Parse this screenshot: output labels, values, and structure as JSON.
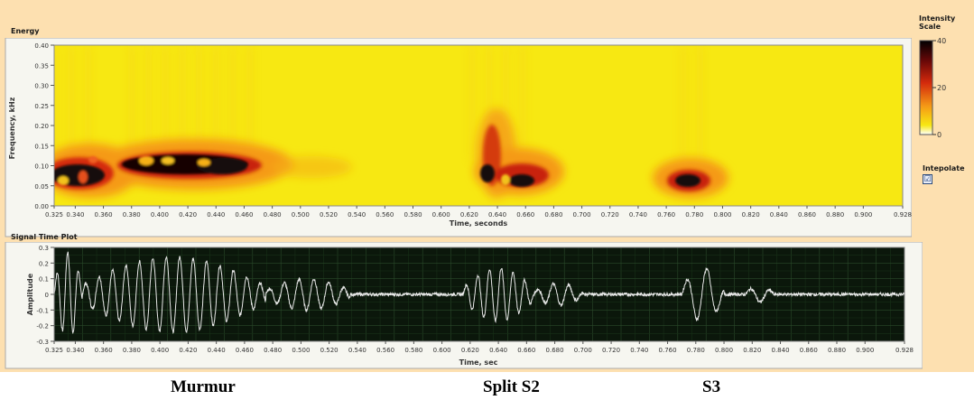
{
  "energy": {
    "title": "Energy",
    "ylabel": "Frequency, kHz",
    "xlabel": "Time, seconds",
    "yticks": [
      "0.40",
      "0.35",
      "0.30",
      "0.25",
      "0.20",
      "0.15",
      "0.10",
      "0.05",
      "0.00"
    ],
    "xticks": [
      "0.325",
      "0.340",
      "0.360",
      "0.380",
      "0.400",
      "0.420",
      "0.440",
      "0.460",
      "0.480",
      "0.500",
      "0.520",
      "0.540",
      "0.560",
      "0.580",
      "0.600",
      "0.620",
      "0.640",
      "0.660",
      "0.680",
      "0.700",
      "0.720",
      "0.740",
      "0.760",
      "0.780",
      "0.800",
      "0.820",
      "0.840",
      "0.860",
      "0.880",
      "0.900",
      "0.928"
    ]
  },
  "intensity": {
    "title_line1": "Intensity",
    "title_line2": "Scale",
    "ticks": [
      "40",
      "20",
      "0"
    ]
  },
  "interpolate": {
    "label": "Intepolate",
    "checked": true,
    "check_glyph": "☑"
  },
  "signal": {
    "title": "Signal Time Plot",
    "ylabel": "Amplitude",
    "xlabel": "Time, sec",
    "yticks": [
      "0.3",
      "0.2",
      "0.1",
      "0",
      "-0.1",
      "-0.2",
      "-0.3"
    ],
    "xticks": [
      "0.325",
      "0.340",
      "0.360",
      "0.380",
      "0.400",
      "0.420",
      "0.440",
      "0.460",
      "0.480",
      "0.500",
      "0.520",
      "0.540",
      "0.560",
      "0.580",
      "0.600",
      "0.620",
      "0.640",
      "0.660",
      "0.680",
      "0.700",
      "0.720",
      "0.740",
      "0.760",
      "0.780",
      "0.800",
      "0.820",
      "0.840",
      "0.860",
      "0.880",
      "0.900",
      "0.928"
    ]
  },
  "labels": {
    "murmur": "Murmur",
    "split_s2": "Split S2",
    "s3": "S3"
  },
  "colors": {
    "panel": "#fde0b0",
    "plot_yellow": "#f7e812",
    "signal_bg": "#0b170b",
    "signal_line": "#e8e8e8"
  },
  "chart_data": [
    {
      "type": "heatmap",
      "title": "Energy",
      "xlabel": "Time, seconds",
      "ylabel": "Frequency, kHz",
      "xlim": [
        0.325,
        0.928
      ],
      "ylim": [
        0,
        0.4
      ],
      "colorbar_label": "Intensity Scale",
      "colorbar_range": [
        0,
        40
      ],
      "high_energy_regions": [
        {
          "t_start": 0.325,
          "t_end": 0.352,
          "f_center": 0.08,
          "intensity": 40
        },
        {
          "t_start": 0.38,
          "t_end": 0.47,
          "f_center": 0.1,
          "intensity": 40
        },
        {
          "t_start": 0.622,
          "t_end": 0.66,
          "f_center": 0.06,
          "intensity": 40
        },
        {
          "t_start": 0.772,
          "t_end": 0.792,
          "f_center": 0.06,
          "intensity": 40
        }
      ]
    },
    {
      "type": "line",
      "title": "Signal Time Plot",
      "xlabel": "Time, sec",
      "ylabel": "Amplitude",
      "xlim": [
        0.325,
        0.928
      ],
      "ylim": [
        -0.3,
        0.3
      ],
      "segments": [
        {
          "t_start": 0.325,
          "t_end": 0.345,
          "amplitude": 0.27,
          "freq_hz": 130
        },
        {
          "t_start": 0.345,
          "t_end": 0.475,
          "amplitude": 0.24,
          "freq_hz": 105
        },
        {
          "t_start": 0.475,
          "t_end": 0.535,
          "amplitude": 0.1,
          "freq_hz": 95
        },
        {
          "t_start": 0.615,
          "t_end": 0.665,
          "amplitude": 0.17,
          "freq_hz": 120
        },
        {
          "t_start": 0.665,
          "t_end": 0.7,
          "amplitude": 0.07,
          "freq_hz": 90
        },
        {
          "t_start": 0.77,
          "t_end": 0.8,
          "amplitude": 0.17,
          "freq_hz": 70
        },
        {
          "t_start": 0.815,
          "t_end": 0.835,
          "amplitude": 0.05,
          "freq_hz": 70
        }
      ],
      "baseline_noise": 0.01
    }
  ]
}
